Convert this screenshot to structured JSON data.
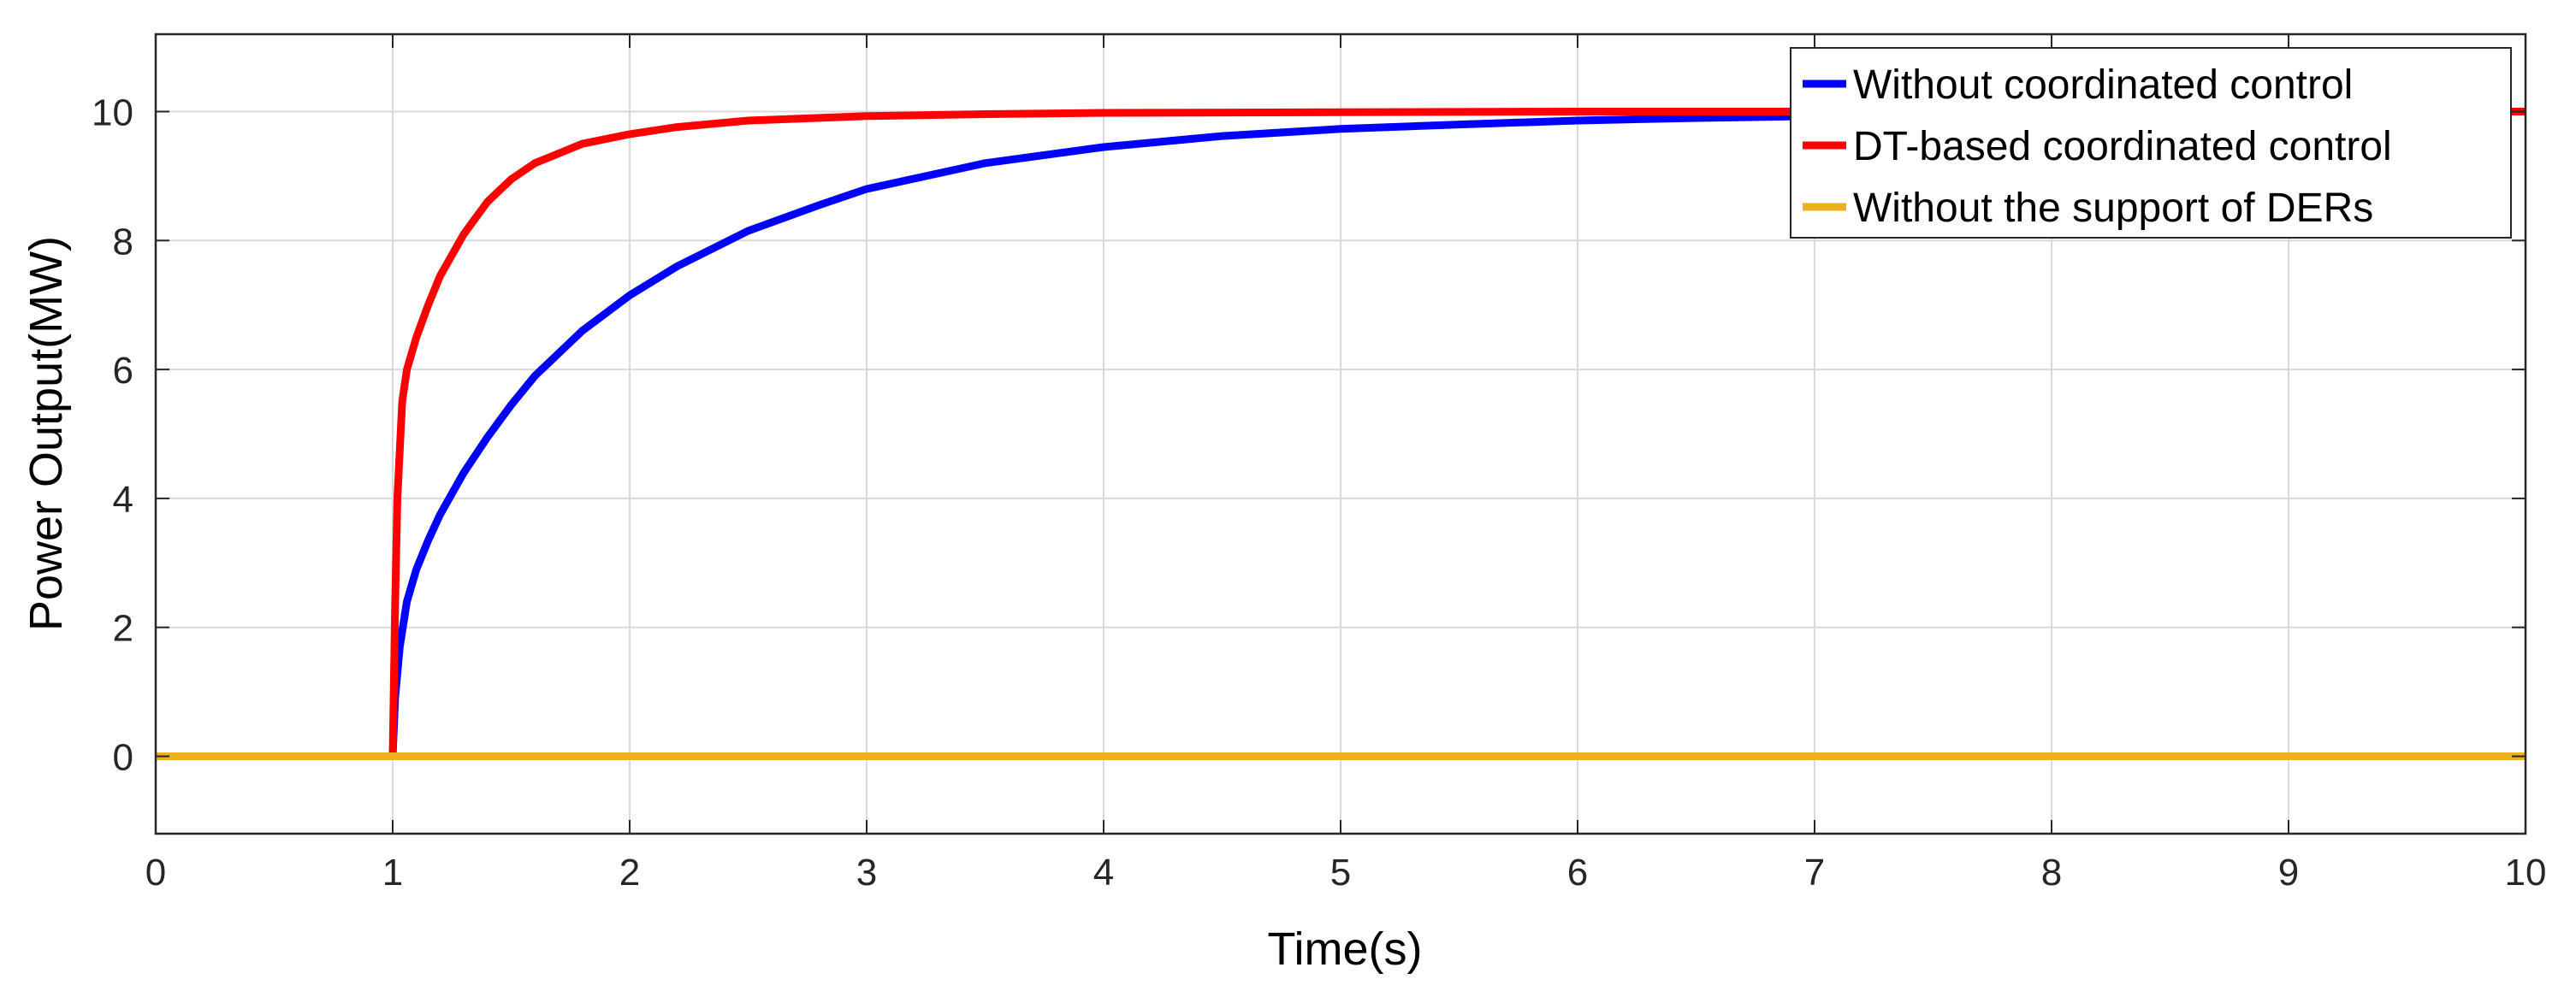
{
  "chart_data": {
    "type": "line",
    "title": "",
    "xlabel": "Time(s)",
    "ylabel": "Power Output(MW)",
    "xlim": [
      0,
      10
    ],
    "ylim": [
      -1.2,
      11.2
    ],
    "xticks": [
      0,
      1,
      2,
      3,
      4,
      5,
      6,
      7,
      8,
      9,
      10
    ],
    "yticks": [
      0,
      2,
      4,
      6,
      8,
      10
    ],
    "grid": true,
    "legend_position": "top-right",
    "series": [
      {
        "name": "Without coordinated control",
        "color": "#0000ff",
        "x": [
          0,
          1.0,
          1.01,
          1.03,
          1.06,
          1.1,
          1.15,
          1.2,
          1.3,
          1.4,
          1.5,
          1.6,
          1.8,
          2.0,
          2.2,
          2.5,
          2.8,
          3.0,
          3.5,
          4.0,
          4.5,
          5.0,
          5.5,
          6.0,
          6.5,
          7.0,
          7.5,
          8.0,
          8.5,
          9.0,
          9.5,
          10.0
        ],
        "y": [
          0,
          0,
          0.9,
          1.7,
          2.4,
          2.9,
          3.35,
          3.75,
          4.4,
          4.95,
          5.45,
          5.9,
          6.6,
          7.15,
          7.6,
          8.15,
          8.55,
          8.8,
          9.2,
          9.45,
          9.62,
          9.73,
          9.8,
          9.86,
          9.9,
          9.93,
          9.95,
          9.97,
          9.98,
          9.99,
          10.0,
          10.0
        ]
      },
      {
        "name": "DT-based coordinated control",
        "color": "#ff0000",
        "x": [
          0,
          1.0,
          1.01,
          1.02,
          1.04,
          1.06,
          1.1,
          1.15,
          1.2,
          1.3,
          1.4,
          1.5,
          1.6,
          1.8,
          2.0,
          2.2,
          2.5,
          3.0,
          3.5,
          4.0,
          5.0,
          6.0,
          7.0,
          8.0,
          9.0,
          10.0
        ],
        "y": [
          0,
          0,
          2.3,
          4.0,
          5.5,
          6.0,
          6.5,
          7.0,
          7.45,
          8.1,
          8.6,
          8.95,
          9.2,
          9.5,
          9.65,
          9.76,
          9.86,
          9.93,
          9.96,
          9.98,
          9.99,
          10.0,
          10.0,
          10.0,
          10.0,
          10.0
        ]
      },
      {
        "name": "Without the support of DERs",
        "color": "#edb120",
        "x": [
          0,
          10
        ],
        "y": [
          0,
          0
        ]
      }
    ]
  }
}
